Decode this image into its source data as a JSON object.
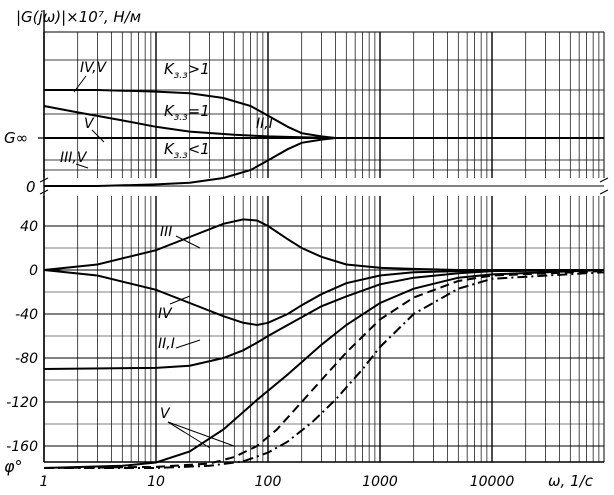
{
  "chart_data": [
    {
      "type": "line",
      "title": "|G(jω)|×10⁷, Н/м",
      "ylabel": "|G(jω)|×10⁷, Н/м",
      "xlabel": "ω, 1/с",
      "x_scale": "log",
      "xlim": [
        1,
        100000
      ],
      "y_ref_label": "G∞",
      "y_zero_label": "0",
      "grid": true,
      "series": [
        {
          "name": "IV,V",
          "x": [
            1,
            3,
            10,
            20,
            40,
            70,
            100,
            150,
            200,
            300,
            400,
            600,
            100000
          ],
          "y": [
            1.3,
            1.3,
            1.29,
            1.28,
            1.25,
            1.2,
            1.14,
            1.07,
            1.03,
            1.01,
            1.0,
            1.0,
            1.0
          ]
        },
        {
          "name": "V",
          "x": [
            1,
            2,
            5,
            10,
            20,
            50,
            100,
            200,
            400,
            100000
          ],
          "y": [
            1.2,
            1.16,
            1.11,
            1.07,
            1.04,
            1.02,
            1.01,
            1.005,
            1.0,
            1.0
          ]
        },
        {
          "name": "III,V",
          "x": [
            1,
            3,
            10,
            20,
            40,
            70,
            100,
            150,
            200,
            300,
            400,
            600,
            100000
          ],
          "y": [
            0.7,
            0.7,
            0.71,
            0.72,
            0.75,
            0.8,
            0.86,
            0.93,
            0.97,
            0.99,
            1.0,
            1.0,
            1.0
          ]
        },
        {
          "name": "II,I",
          "x": [
            1,
            100000
          ],
          "y": [
            1.0,
            1.0
          ]
        }
      ],
      "annotations": [
        "IV,V",
        "V",
        "III,V",
        "II,I",
        "Kз.з>1",
        "Kз.з=1",
        "Kз.з<1"
      ],
      "annotation_main": "K",
      "annotation_sub": "з.з",
      "annotation_ops": [
        ">1",
        "=1",
        "<1"
      ]
    },
    {
      "type": "line",
      "ylabel": "φ°",
      "xlabel": "ω, 1/с",
      "x_scale": "log",
      "xlim": [
        1,
        100000
      ],
      "ylim": [
        -180,
        60
      ],
      "yticks": [
        40,
        0,
        -40,
        -80,
        -120,
        -160
      ],
      "xticks": [
        1,
        10,
        100,
        1000,
        10000
      ],
      "xtick_labels": [
        "1",
        "10",
        "100",
        "1000",
        "10000"
      ],
      "grid": true,
      "series": [
        {
          "name": "III",
          "x": [
            1,
            3,
            10,
            20,
            40,
            60,
            80,
            100,
            150,
            200,
            300,
            500,
            1000,
            2000,
            5000,
            100000
          ],
          "y": [
            0,
            5,
            18,
            30,
            42,
            46,
            45,
            40,
            28,
            20,
            12,
            5,
            2,
            1,
            0,
            0
          ]
        },
        {
          "name": "IV",
          "x": [
            1,
            3,
            10,
            20,
            40,
            60,
            80,
            100,
            150,
            200,
            300,
            500,
            1000,
            2000,
            5000,
            100000
          ],
          "y": [
            0,
            -5,
            -18,
            -30,
            -42,
            -48,
            -50,
            -48,
            -40,
            -32,
            -22,
            -12,
            -5,
            -2,
            -1,
            0
          ]
        },
        {
          "name": "II,I",
          "x": [
            1,
            10,
            20,
            40,
            60,
            80,
            100,
            150,
            200,
            300,
            500,
            1000,
            2000,
            5000,
            10000,
            100000
          ],
          "y": [
            -90,
            -89,
            -87,
            -80,
            -73,
            -66,
            -60,
            -50,
            -43,
            -33,
            -24,
            -13,
            -7,
            -3,
            -1,
            0
          ]
        },
        {
          "name": "V",
          "x": [
            1,
            5,
            10,
            20,
            40,
            80,
            150,
            300,
            500,
            1000,
            2000,
            5000,
            10000,
            100000
          ],
          "y": [
            -180,
            -178,
            -175,
            -165,
            -145,
            -118,
            -95,
            -68,
            -50,
            -30,
            -17,
            -7,
            -4,
            0
          ]
        },
        {
          "name": "V",
          "x": [
            1,
            10,
            30,
            50,
            80,
            120,
            200,
            300,
            500,
            1000,
            2000,
            5000,
            10000,
            100000
          ],
          "y": [
            -180,
            -179,
            -176,
            -170,
            -160,
            -145,
            -120,
            -100,
            -75,
            -45,
            -25,
            -10,
            -5,
            -1
          ],
          "style": "dashed"
        },
        {
          "name": "V",
          "x": [
            1,
            10,
            30,
            60,
            100,
            150,
            250,
            400,
            700,
            1000,
            2000,
            5000,
            10000,
            100000
          ],
          "y": [
            -180,
            -180,
            -178,
            -174,
            -166,
            -156,
            -138,
            -118,
            -90,
            -70,
            -40,
            -17,
            -8,
            -2
          ],
          "style": "dashdot"
        }
      ]
    }
  ]
}
